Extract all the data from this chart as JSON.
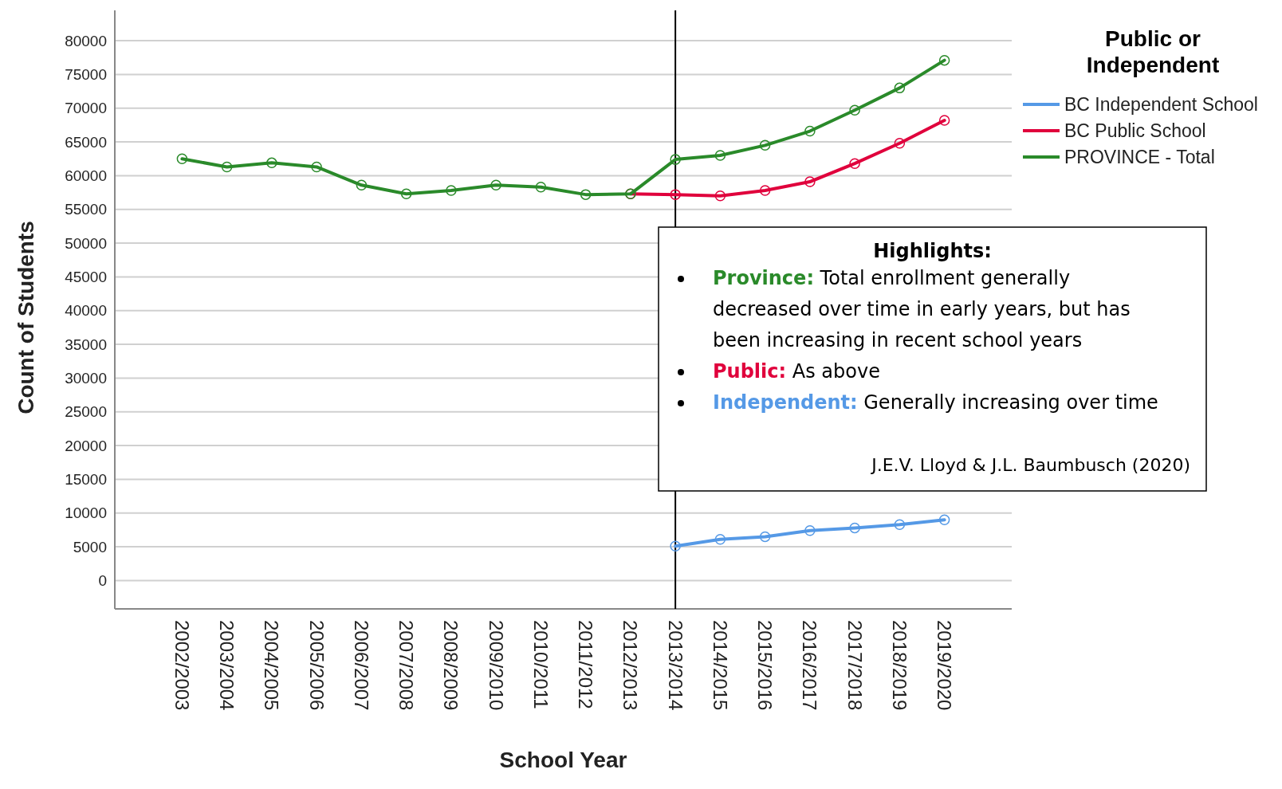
{
  "chart_data": {
    "type": "line",
    "xlabel": "School Year",
    "ylabel": "Count of Students",
    "legend_title": "Public or Independent",
    "legend": "top right",
    "grid": "y",
    "marker": "circle",
    "line_style": "solid",
    "categories": [
      "2002/2003",
      "2003/2004",
      "2004/2005",
      "2005/2006",
      "2006/2007",
      "2007/2008",
      "2008/2009",
      "2009/2010",
      "2010/2011",
      "2011/2012",
      "2012/2013",
      "2013/2014",
      "2014/2015",
      "2015/2016",
      "2016/2017",
      "2017/2018",
      "2018/2019",
      "2019/2020"
    ],
    "ylim": [
      -4200,
      84500
    ],
    "yticks": [
      0,
      5000,
      10000,
      15000,
      20000,
      25000,
      30000,
      35000,
      40000,
      45000,
      50000,
      55000,
      60000,
      65000,
      70000,
      75000,
      80000
    ],
    "series": [
      {
        "name": "BC Independent School",
        "color": "#5599e6",
        "values": [
          null,
          null,
          null,
          null,
          null,
          null,
          null,
          null,
          null,
          null,
          null,
          5100,
          6100,
          6500,
          7400,
          7800,
          8300,
          9000
        ]
      },
      {
        "name": "BC Public School",
        "color": "#e0003c",
        "values": [
          null,
          null,
          null,
          null,
          null,
          null,
          null,
          null,
          null,
          null,
          57300,
          57200,
          57000,
          57800,
          59100,
          61800,
          64800,
          68200
        ]
      },
      {
        "name": "PROVINCE - Total",
        "color": "#2a8a2a",
        "values": [
          62500,
          61300,
          61900,
          61300,
          58600,
          57300,
          57800,
          58600,
          58300,
          57200,
          57300,
          62400,
          63000,
          64500,
          66600,
          69700,
          73000,
          77100
        ]
      }
    ],
    "ref_lines": [
      {
        "axis": "x",
        "value": "2013/2014",
        "color": "#000000"
      }
    ],
    "annotations": [
      "Highlights:",
      "Province: Total enrollment generally decreased over time in early years, but has been increasing in recent school years",
      "Public: As above",
      "Independent: Generally increasing over time",
      "J.E.V. Lloyd & J.L. Baumbusch (2020)"
    ]
  }
}
